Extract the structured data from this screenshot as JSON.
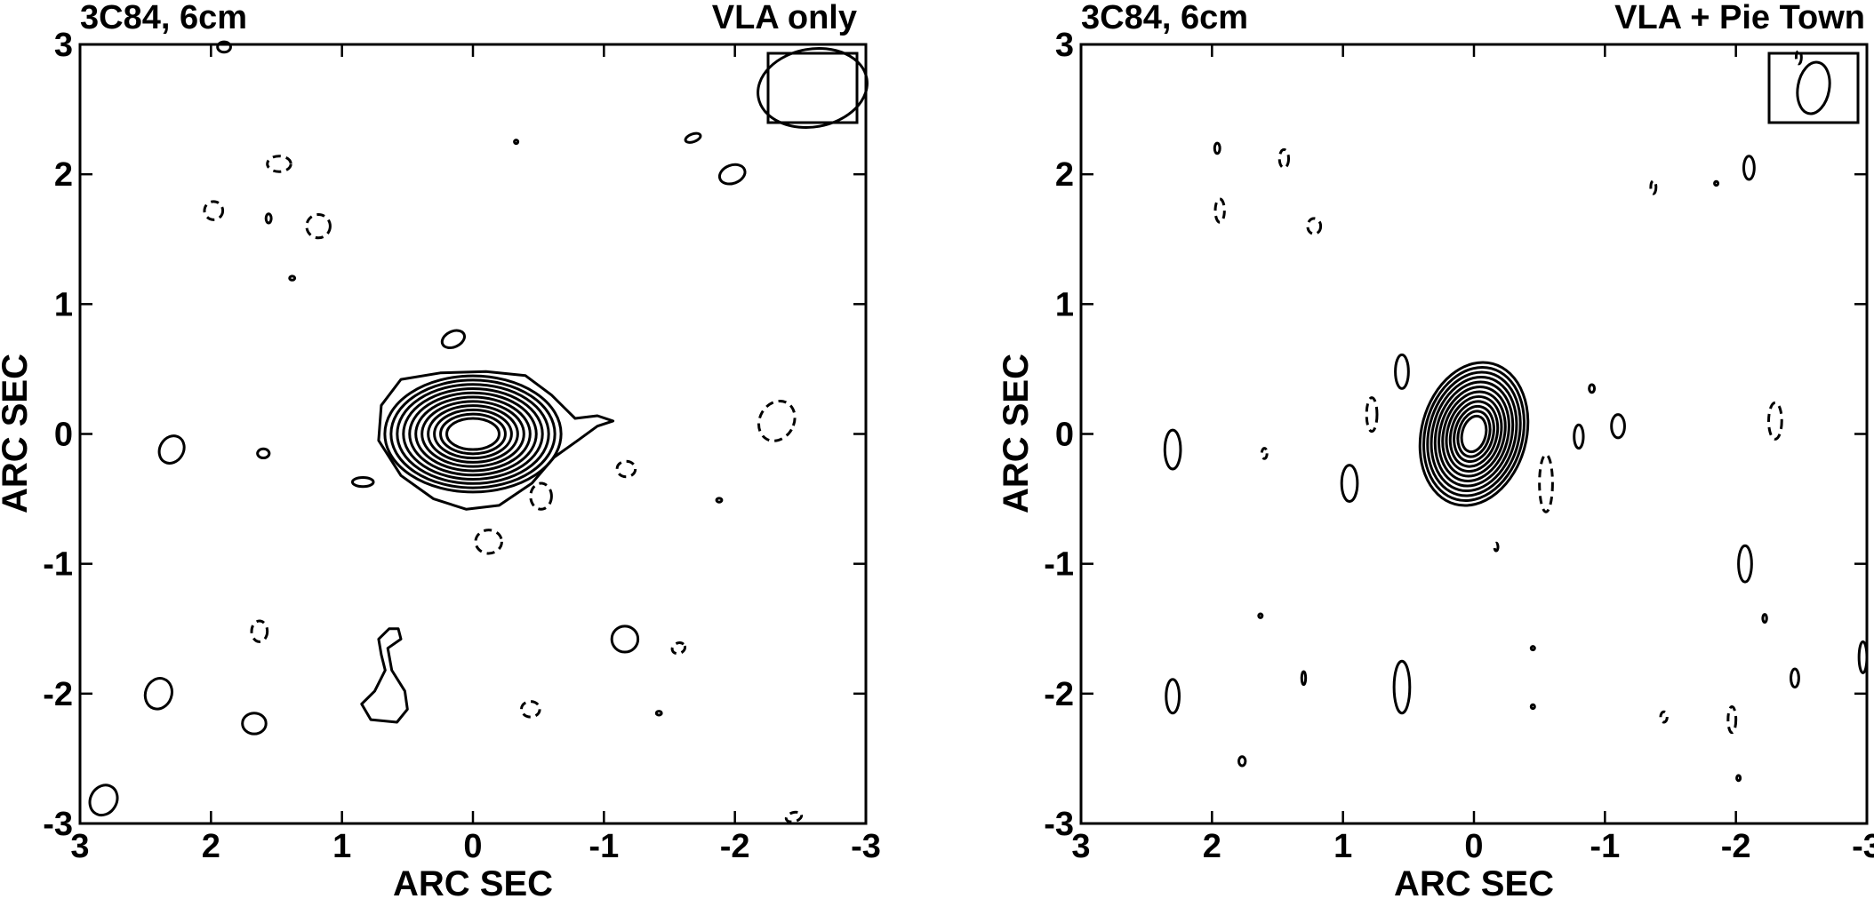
{
  "chart_data": [
    {
      "type": "contour",
      "title_left": "3C84, 6cm",
      "title_right": "VLA only",
      "xlabel": "ARC SEC",
      "ylabel": "ARC SEC",
      "xlim": [
        3,
        -3
      ],
      "ylim": [
        -3,
        3
      ],
      "xticks": [
        3,
        2,
        1,
        0,
        -1,
        -2,
        -3
      ],
      "yticks": [
        3,
        2,
        1,
        0,
        -1,
        -2,
        -3
      ],
      "xtick_labels": [
        "3",
        "2",
        "1",
        "0",
        "-1",
        "-2",
        "-3"
      ],
      "ytick_labels": [
        "3",
        "2",
        "1",
        "0",
        "-1",
        "-2",
        "-3"
      ],
      "grid": false,
      "beam": {
        "corner": "top-right",
        "major": 0.42,
        "minor": 0.3,
        "pa_deg": -10
      },
      "core": {
        "center": [
          0,
          0
        ],
        "levels": 12,
        "outer_rx": 0.72,
        "outer_ry": 0.48,
        "inner_rx": 0.2,
        "inner_ry": 0.12,
        "outer_shape": [
          [
            -1.07,
            0.1
          ],
          [
            -0.95,
            0.06
          ],
          [
            -0.8,
            -0.05
          ],
          [
            -0.62,
            -0.18
          ],
          [
            -0.45,
            -0.38
          ],
          [
            -0.2,
            -0.55
          ],
          [
            0.05,
            -0.58
          ],
          [
            0.3,
            -0.5
          ],
          [
            0.55,
            -0.32
          ],
          [
            0.72,
            -0.05
          ],
          [
            0.7,
            0.22
          ],
          [
            0.55,
            0.42
          ],
          [
            0.25,
            0.47
          ],
          [
            -0.1,
            0.48
          ],
          [
            -0.4,
            0.45
          ],
          [
            -0.6,
            0.3
          ],
          [
            -0.78,
            0.12
          ],
          [
            -0.95,
            0.14
          ]
        ]
      },
      "blobs": [
        {
          "x": 1.9,
          "y": 2.98,
          "rx": 0.05,
          "ry": 0.04,
          "rot": 0,
          "neg": false
        },
        {
          "x": 1.48,
          "y": 2.08,
          "rx": 0.09,
          "ry": 0.06,
          "rot": 0,
          "neg": true
        },
        {
          "x": 1.98,
          "y": 1.72,
          "rx": 0.07,
          "ry": 0.07,
          "rot": 0,
          "neg": true
        },
        {
          "x": 1.56,
          "y": 1.66,
          "rx": 0.02,
          "ry": 0.035,
          "rot": 0,
          "neg": false
        },
        {
          "x": 1.18,
          "y": 1.6,
          "rx": 0.09,
          "ry": 0.09,
          "rot": 0,
          "neg": true
        },
        {
          "x": 1.38,
          "y": 1.2,
          "rx": 0.02,
          "ry": 0.015,
          "rot": 0,
          "neg": false
        },
        {
          "x": 0.15,
          "y": 0.73,
          "rx": 0.09,
          "ry": 0.06,
          "rot": -25,
          "neg": false
        },
        {
          "x": -0.33,
          "y": 2.25,
          "rx": 0.008,
          "ry": 0.008,
          "rot": 0,
          "neg": false
        },
        {
          "x": -1.68,
          "y": 2.28,
          "rx": 0.06,
          "ry": 0.03,
          "rot": -20,
          "neg": false
        },
        {
          "x": -1.98,
          "y": 2.0,
          "rx": 0.1,
          "ry": 0.07,
          "rot": -20,
          "neg": false
        },
        {
          "x": -2.32,
          "y": 0.1,
          "rx": 0.13,
          "ry": 0.16,
          "rot": 30,
          "neg": true
        },
        {
          "x": 2.3,
          "y": -0.12,
          "rx": 0.09,
          "ry": 0.11,
          "rot": 30,
          "neg": false
        },
        {
          "x": 1.6,
          "y": -0.15,
          "rx": 0.045,
          "ry": 0.035,
          "rot": 0,
          "neg": false
        },
        {
          "x": 0.84,
          "y": -0.37,
          "rx": 0.08,
          "ry": 0.035,
          "rot": 0,
          "neg": false
        },
        {
          "x": -0.52,
          "y": -0.48,
          "rx": 0.08,
          "ry": 0.1,
          "rot": 0,
          "neg": true
        },
        {
          "x": -1.17,
          "y": -0.27,
          "rx": 0.07,
          "ry": 0.06,
          "rot": 0,
          "neg": true
        },
        {
          "x": -1.88,
          "y": -0.51,
          "rx": 0.02,
          "ry": 0.015,
          "rot": 0,
          "neg": false
        },
        {
          "x": -0.12,
          "y": -0.83,
          "rx": 0.1,
          "ry": 0.09,
          "rot": 0,
          "neg": true
        },
        {
          "x": 1.63,
          "y": -1.52,
          "rx": 0.06,
          "ry": 0.08,
          "rot": 0,
          "neg": true
        },
        {
          "x": -1.16,
          "y": -1.58,
          "rx": 0.1,
          "ry": 0.1,
          "rot": 0,
          "neg": false
        },
        {
          "x": -1.57,
          "y": -1.65,
          "rx": 0.05,
          "ry": 0.04,
          "rot": -20,
          "neg": true
        },
        {
          "x": 2.4,
          "y": -2.0,
          "rx": 0.1,
          "ry": 0.12,
          "rot": 20,
          "neg": false
        },
        {
          "x": 1.67,
          "y": -2.23,
          "rx": 0.09,
          "ry": 0.08,
          "rot": 0,
          "neg": false
        },
        {
          "x": -0.44,
          "y": -2.12,
          "rx": 0.07,
          "ry": 0.06,
          "rot": 0,
          "neg": true
        },
        {
          "x": -1.42,
          "y": -2.15,
          "rx": 0.02,
          "ry": 0.015,
          "rot": 0,
          "neg": false
        },
        {
          "x": 2.82,
          "y": -2.82,
          "rx": 0.1,
          "ry": 0.12,
          "rot": 30,
          "neg": false
        },
        {
          "x": -2.45,
          "y": -2.95,
          "rx": 0.06,
          "ry": 0.035,
          "rot": -15,
          "neg": true
        }
      ],
      "peanut": [
        [
          0.55,
          -1.58
        ],
        [
          0.65,
          -1.65
        ],
        [
          0.62,
          -1.82
        ],
        [
          0.52,
          -1.98
        ],
        [
          0.5,
          -2.12
        ],
        [
          0.58,
          -2.22
        ],
        [
          0.78,
          -2.2
        ],
        [
          0.85,
          -2.08
        ],
        [
          0.75,
          -1.98
        ],
        [
          0.67,
          -1.82
        ],
        [
          0.7,
          -1.7
        ],
        [
          0.72,
          -1.58
        ],
        [
          0.64,
          -1.5
        ],
        [
          0.57,
          -1.5
        ]
      ]
    },
    {
      "type": "contour",
      "title_left": "3C84, 6cm",
      "title_right": "VLA + Pie Town",
      "xlabel": "ARC SEC",
      "ylabel": "ARC SEC",
      "xlim": [
        3,
        -3
      ],
      "ylim": [
        -3,
        3
      ],
      "xticks": [
        3,
        2,
        1,
        0,
        -1,
        -2,
        -3
      ],
      "yticks": [
        3,
        2,
        1,
        0,
        -1,
        -2,
        -3
      ],
      "xtick_labels": [
        "3",
        "2",
        "1",
        "0",
        "-1",
        "-2",
        "-3"
      ],
      "ytick_labels": [
        "3",
        "2",
        "1",
        "0",
        "-1",
        "-2",
        "-3"
      ],
      "grid": false,
      "beam": {
        "corner": "top-right",
        "major": 0.2,
        "minor": 0.12,
        "pa_deg": 10
      },
      "core": {
        "center": [
          0,
          0
        ],
        "levels": 12,
        "outer_rx": 0.4,
        "outer_ry": 0.56,
        "inner_rx": 0.09,
        "inner_ry": 0.14,
        "rot": 15,
        "outer_shape": null
      },
      "blobs": [
        {
          "x": -2.48,
          "y": 2.9,
          "rx": 0.02,
          "ry": 0.05,
          "rot": 0,
          "neg": true
        },
        {
          "x": 1.96,
          "y": 2.2,
          "rx": 0.02,
          "ry": 0.04,
          "rot": 0,
          "neg": false
        },
        {
          "x": 1.45,
          "y": 2.12,
          "rx": 0.035,
          "ry": 0.07,
          "rot": 0,
          "neg": true
        },
        {
          "x": 1.94,
          "y": 1.72,
          "rx": 0.035,
          "ry": 0.09,
          "rot": 0,
          "neg": true
        },
        {
          "x": 1.22,
          "y": 1.6,
          "rx": 0.05,
          "ry": 0.06,
          "rot": 0,
          "neg": true
        },
        {
          "x": -1.37,
          "y": 1.9,
          "rx": 0.02,
          "ry": 0.05,
          "rot": 0,
          "neg": true
        },
        {
          "x": -1.85,
          "y": 1.93,
          "rx": 0.01,
          "ry": 0.015,
          "rot": 0,
          "neg": false
        },
        {
          "x": -2.1,
          "y": 2.05,
          "rx": 0.04,
          "ry": 0.09,
          "rot": 0,
          "neg": false
        },
        {
          "x": 0.55,
          "y": 0.48,
          "rx": 0.05,
          "ry": 0.13,
          "rot": 0,
          "neg": false
        },
        {
          "x": -0.9,
          "y": 0.35,
          "rx": 0.02,
          "ry": 0.03,
          "rot": 0,
          "neg": false
        },
        {
          "x": 0.78,
          "y": 0.15,
          "rx": 0.04,
          "ry": 0.13,
          "rot": 0,
          "neg": true
        },
        {
          "x": -1.1,
          "y": 0.06,
          "rx": 0.05,
          "ry": 0.09,
          "rot": 0,
          "neg": false
        },
        {
          "x": -0.8,
          "y": -0.02,
          "rx": 0.035,
          "ry": 0.09,
          "rot": 0,
          "neg": false
        },
        {
          "x": -2.3,
          "y": 0.1,
          "rx": 0.05,
          "ry": 0.14,
          "rot": 0,
          "neg": true
        },
        {
          "x": 2.3,
          "y": -0.12,
          "rx": 0.06,
          "ry": 0.15,
          "rot": 0,
          "neg": false
        },
        {
          "x": 1.6,
          "y": -0.15,
          "rx": 0.02,
          "ry": 0.04,
          "rot": 0,
          "neg": true
        },
        {
          "x": 0.95,
          "y": -0.38,
          "rx": 0.06,
          "ry": 0.14,
          "rot": 0,
          "neg": false
        },
        {
          "x": -0.55,
          "y": -0.38,
          "rx": 0.05,
          "ry": 0.22,
          "rot": 0,
          "neg": true
        },
        {
          "x": -0.17,
          "y": -0.87,
          "rx": 0.01,
          "ry": 0.03,
          "rot": 0,
          "neg": true
        },
        {
          "x": -2.07,
          "y": -1.0,
          "rx": 0.05,
          "ry": 0.14,
          "rot": 0,
          "neg": false
        },
        {
          "x": 1.63,
          "y": -1.4,
          "rx": 0.01,
          "ry": 0.015,
          "rot": 0,
          "neg": false
        },
        {
          "x": -2.22,
          "y": -1.42,
          "rx": 0.015,
          "ry": 0.03,
          "rot": 0,
          "neg": false
        },
        {
          "x": -0.45,
          "y": -1.65,
          "rx": 0.005,
          "ry": 0.01,
          "rot": 0,
          "neg": false
        },
        {
          "x": -2.97,
          "y": -1.72,
          "rx": 0.03,
          "ry": 0.12,
          "rot": 0,
          "neg": false
        },
        {
          "x": 1.3,
          "y": -1.88,
          "rx": 0.015,
          "ry": 0.05,
          "rot": 0,
          "neg": false
        },
        {
          "x": 0.55,
          "y": -1.95,
          "rx": 0.06,
          "ry": 0.2,
          "rot": 0,
          "neg": false
        },
        {
          "x": -2.45,
          "y": -1.88,
          "rx": 0.03,
          "ry": 0.07,
          "rot": 0,
          "neg": false
        },
        {
          "x": 2.3,
          "y": -2.02,
          "rx": 0.05,
          "ry": 0.13,
          "rot": 0,
          "neg": false
        },
        {
          "x": -0.45,
          "y": -2.1,
          "rx": 0.01,
          "ry": 0.015,
          "rot": 0,
          "neg": false
        },
        {
          "x": -1.45,
          "y": -2.18,
          "rx": 0.025,
          "ry": 0.04,
          "rot": 0,
          "neg": true
        },
        {
          "x": -1.97,
          "y": -2.2,
          "rx": 0.03,
          "ry": 0.1,
          "rot": 0,
          "neg": true
        },
        {
          "x": 1.77,
          "y": -2.52,
          "rx": 0.025,
          "ry": 0.035,
          "rot": 0,
          "neg": false
        },
        {
          "x": -2.02,
          "y": -2.65,
          "rx": 0.005,
          "ry": 0.02,
          "rot": 0,
          "neg": false
        }
      ],
      "peanut": null
    }
  ]
}
